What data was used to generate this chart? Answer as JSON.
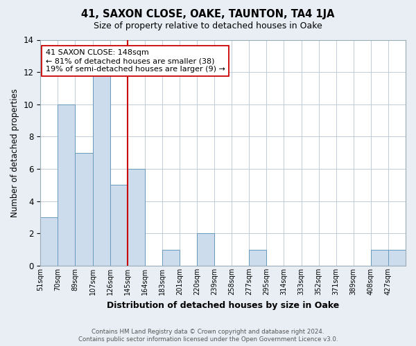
{
  "title": "41, SAXON CLOSE, OAKE, TAUNTON, TA4 1JA",
  "subtitle": "Size of property relative to detached houses in Oake",
  "xlabel": "Distribution of detached houses by size in Oake",
  "ylabel": "Number of detached properties",
  "bin_labels": [
    "51sqm",
    "70sqm",
    "89sqm",
    "107sqm",
    "126sqm",
    "145sqm",
    "164sqm",
    "183sqm",
    "201sqm",
    "220sqm",
    "239sqm",
    "258sqm",
    "277sqm",
    "295sqm",
    "314sqm",
    "333sqm",
    "352sqm",
    "371sqm",
    "389sqm",
    "408sqm",
    "427sqm"
  ],
  "n_bins": 21,
  "bar_heights": [
    3,
    10,
    7,
    12,
    5,
    6,
    0,
    1,
    0,
    2,
    0,
    0,
    1,
    0,
    0,
    0,
    0,
    0,
    0,
    1,
    1
  ],
  "bar_color": "#ccdcec",
  "bar_edge_color": "#6699bb",
  "property_bin_index": 5,
  "property_line_color": "#cc0000",
  "annotation_text": "41 SAXON CLOSE: 148sqm\n← 81% of detached houses are smaller (38)\n19% of semi-detached houses are larger (9) →",
  "annotation_box_color": "#ffffff",
  "annotation_box_edge": "#cc0000",
  "ylim": [
    0,
    14
  ],
  "yticks": [
    0,
    2,
    4,
    6,
    8,
    10,
    12,
    14
  ],
  "background_color": "#e8eef4",
  "plot_background_color": "#ffffff",
  "grid_color": "#c0ccd8",
  "footnote1": "Contains HM Land Registry data © Crown copyright and database right 2024.",
  "footnote2": "Contains public sector information licensed under the Open Government Licence v3.0."
}
